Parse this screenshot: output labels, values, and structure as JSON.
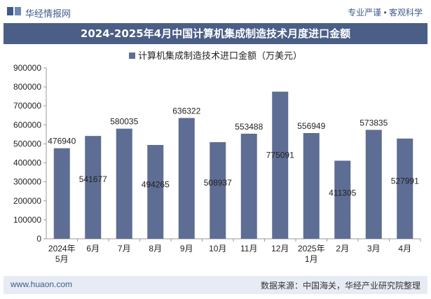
{
  "header": {
    "site_name": "华经情报网",
    "tagline": "专业严谨 • 客观科学"
  },
  "colors": {
    "brand": "#3d5a8a",
    "title_band": "#4a5e86",
    "bar": "#5e6d93",
    "footer_bg": "#e7ecf4"
  },
  "footer": {
    "url": "www.huaon.com",
    "source": "数据来源：中国海关，华经产业研究院整理"
  },
  "chart_data": {
    "type": "bar",
    "title": "2024-2025年4月中国计算机集成制造技术月度进口金额",
    "legend_position": "top-center",
    "grid": false,
    "ylim": [
      0,
      900000
    ],
    "yticks": [
      0,
      100000,
      200000,
      300000,
      400000,
      500000,
      600000,
      700000,
      800000,
      900000
    ],
    "categories": [
      [
        "2024年",
        "5月"
      ],
      [
        "6月"
      ],
      [
        "7月"
      ],
      [
        "8月"
      ],
      [
        "9月"
      ],
      [
        "10月"
      ],
      [
        "11月"
      ],
      [
        "12月"
      ],
      [
        "2025年",
        "1月"
      ],
      [
        "2月"
      ],
      [
        "3月"
      ],
      [
        "4月"
      ]
    ],
    "series": [
      {
        "name": "计算机集成制造技术进口金额（万美元）",
        "values": [
          476940,
          541677,
          580035,
          494265,
          636322,
          508937,
          553488,
          775091,
          556949,
          411305,
          573835,
          527991
        ],
        "label_placement": [
          "above",
          "inside",
          "above",
          "inside",
          "above",
          "inside",
          "above",
          "inside",
          "above",
          "inside",
          "above",
          "inside"
        ]
      }
    ]
  }
}
